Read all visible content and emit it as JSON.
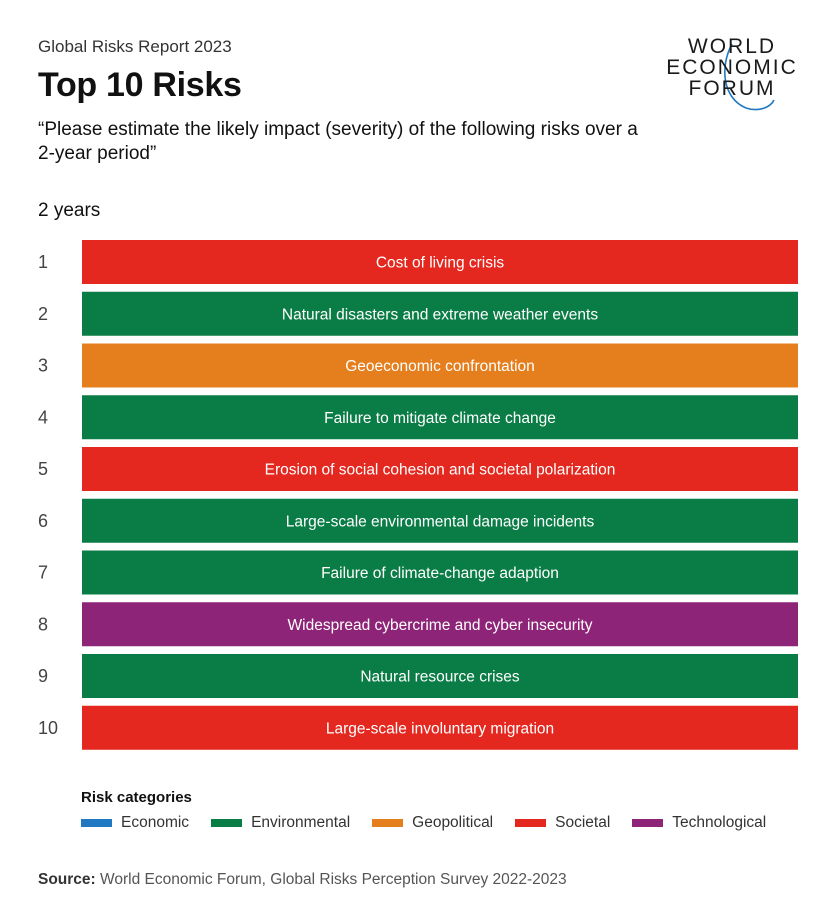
{
  "header": {
    "report_label": "Global Risks Report 2023",
    "title": "Top 10 Risks",
    "subtitle": "“Please estimate the likely impact (severity) of the following risks over a 2-year period”",
    "period": "2 years"
  },
  "logo": {
    "line1": "WORLD",
    "line2": "ECONOMIC",
    "line3": "FORUM"
  },
  "colors": {
    "Economic": "#1f78c1",
    "Environmental": "#0a7c45",
    "Geopolitical": "#e57e1d",
    "Societal": "#e4271f",
    "Technological": "#8e2477"
  },
  "chart_data": {
    "type": "table",
    "rows": [
      {
        "rank": "1",
        "label": "Cost of living crisis",
        "category": "Societal"
      },
      {
        "rank": "2",
        "label": "Natural disasters and extreme weather events",
        "category": "Environmental"
      },
      {
        "rank": "3",
        "label": "Geoeconomic confrontation",
        "category": "Geopolitical"
      },
      {
        "rank": "4",
        "label": "Failure to mitigate climate change",
        "category": "Environmental"
      },
      {
        "rank": "5",
        "label": "Erosion of social cohesion and societal polarization",
        "category": "Societal"
      },
      {
        "rank": "6",
        "label": "Large-scale environmental damage incidents",
        "category": "Environmental"
      },
      {
        "rank": "7",
        "label": "Failure of climate-change adaption",
        "category": "Environmental"
      },
      {
        "rank": "8",
        "label": "Widespread cybercrime and cyber insecurity",
        "category": "Technological"
      },
      {
        "rank": "9",
        "label": "Natural resource crises",
        "category": "Environmental"
      },
      {
        "rank": "10",
        "label": "Large-scale involuntary migration",
        "category": "Societal"
      }
    ]
  },
  "legend": {
    "title": "Risk categories",
    "items": [
      "Economic",
      "Environmental",
      "Geopolitical",
      "Societal",
      "Technological"
    ]
  },
  "source": {
    "label": "Source:",
    "text": " World Economic Forum, Global Risks Perception Survey 2022-2023"
  }
}
